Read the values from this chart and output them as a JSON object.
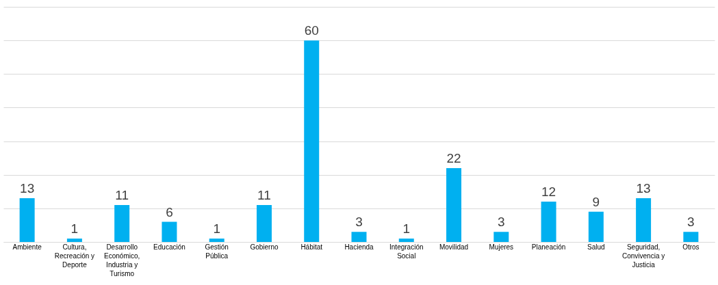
{
  "chart_data": {
    "type": "bar",
    "categories": [
      "Ambiente",
      "Cultura, Recreación y Deporte",
      "Desarrollo Económico, Industria y Turismo",
      "Educación",
      "Gestión Pública",
      "Gobierno",
      "Hábitat",
      "Hacienda",
      "Integración Social",
      "Movilidad",
      "Mujeres",
      "Planeación",
      "Salud",
      "Seguridad, Convivencia y Justicia",
      "Otros"
    ],
    "values": [
      13,
      1,
      11,
      6,
      1,
      11,
      60,
      3,
      1,
      22,
      3,
      12,
      9,
      13,
      3
    ],
    "color": "#00b0f0",
    "ylim": [
      0,
      70
    ],
    "yticks": [
      {
        "value": 0,
        "label": null
      },
      {
        "value": 10,
        "label": null
      },
      {
        "value": 20,
        "label": null
      },
      {
        "value": 30,
        "label": null
      },
      {
        "value": 40,
        "label": null
      },
      {
        "value": 50,
        "label": null
      },
      {
        "value": 60,
        "label": null
      },
      {
        "value": 70,
        "label": null
      }
    ],
    "grid": "y",
    "tick_labels": "x",
    "data_labels": true
  }
}
